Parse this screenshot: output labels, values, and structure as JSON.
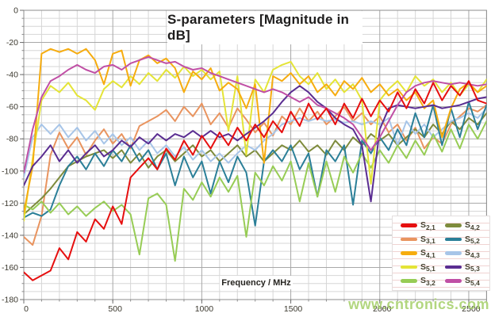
{
  "watermark": {
    "text": "www.cntronics.com",
    "color": "#a5cf69"
  },
  "chart_data": {
    "type": "line",
    "title": "S-parameters [Magnitude in dB]",
    "xlabel": "Frequency / MHz",
    "ylabel": "",
    "xlim": [
      0,
      2600
    ],
    "ylim": [
      -180,
      0
    ],
    "x_major_ticks": [
      0,
      500,
      1000,
      1500,
      2000,
      2500
    ],
    "y_major_ticks": [
      0,
      -20,
      -40,
      -60,
      -80,
      -100,
      -120,
      -140,
      -160,
      -180
    ],
    "x_minor_step": 100,
    "y_minor_step": 5,
    "grid": true,
    "legend_position": "bottom-right",
    "x_start": 0,
    "x_step": 50,
    "series": [
      {
        "name": "S2,1",
        "label_base": "S",
        "label_sub": "2,1",
        "color": "#e60f0f",
        "values": [
          -163,
          -168,
          -165,
          -162,
          -148,
          -155,
          -138,
          -144,
          -130,
          -136,
          -122,
          -133,
          -104,
          -98,
          -92,
          -99,
          -86,
          -93,
          -81,
          -90,
          -78,
          -86,
          -76,
          -84,
          -73,
          -81,
          -71,
          -79,
          -69,
          -76,
          -63,
          -72,
          -58,
          -68,
          -61,
          -71,
          -58,
          -67,
          -55,
          -66,
          -56,
          -63,
          -51,
          -61,
          -49,
          -58,
          -45,
          -56,
          -47,
          -53,
          -44,
          -56,
          -58
        ]
      },
      {
        "name": "S3,1",
        "label_base": "S",
        "label_sub": "3,1",
        "color": "#e9945f",
        "values": [
          -141,
          -146,
          -128,
          -90,
          -76,
          -86,
          -79,
          -90,
          -81,
          -74,
          -83,
          -77,
          -86,
          -72,
          -69,
          -66,
          -62,
          -69,
          -60,
          -66,
          -58,
          -71,
          -64,
          -73,
          -61,
          -68,
          -76,
          -70,
          -78,
          -66,
          -71,
          -61,
          -69,
          -63,
          -71,
          -66,
          -60,
          -69,
          -64,
          -71,
          -66,
          -76,
          -71,
          -81,
          -73,
          -86,
          -79,
          -83,
          -71,
          -66,
          -61,
          -63,
          -59
        ]
      },
      {
        "name": "S4,1",
        "label_base": "S",
        "label_sub": "4,1",
        "color": "#f6ac0f",
        "values": [
          -126,
          -97,
          -27,
          -24,
          -26,
          -24,
          -27,
          -24,
          -31,
          -46,
          -27,
          -25,
          -47,
          -31,
          -28,
          -33,
          -30,
          -36,
          -51,
          -38,
          -43,
          -36,
          -50,
          -45,
          -49,
          -61,
          -46,
          -95,
          -41,
          -44,
          -39,
          -46,
          -41,
          -51,
          -46,
          -53,
          -44,
          -49,
          -42,
          -51,
          -46,
          -53,
          -49,
          -56,
          -51,
          -61,
          -56,
          -79,
          -61,
          -49,
          -45,
          -51,
          -47
        ]
      },
      {
        "name": "S5,1",
        "label_base": "S",
        "label_sub": "5,1",
        "color": "#e4e437",
        "values": [
          -131,
          -92,
          -56,
          -47,
          -51,
          -45,
          -53,
          -56,
          -62,
          -49,
          -44,
          -48,
          -41,
          -46,
          -39,
          -44,
          -37,
          -42,
          -35,
          -41,
          -37,
          -43,
          -38,
          -75,
          -41,
          -90,
          -43,
          -51,
          -37,
          -34,
          -32,
          -41,
          -46,
          -39,
          -49,
          -43,
          -51,
          -46,
          -56,
          -108,
          -56,
          -49,
          -44,
          -51,
          -41,
          -47,
          -43,
          -51,
          -45,
          -53,
          -46,
          -51,
          -43
        ]
      },
      {
        "name": "S3,2",
        "label_base": "S",
        "label_sub": "3,2",
        "color": "#97cc55",
        "values": [
          -121,
          -124,
          -119,
          -126,
          -120,
          -127,
          -122,
          -128,
          -123,
          -119,
          -125,
          -121,
          -127,
          -152,
          -117,
          -114,
          -121,
          -156,
          -111,
          -118,
          -107,
          -116,
          -104,
          -113,
          -103,
          -141,
          -101,
          -109,
          -97,
          -106,
          -94,
          -119,
          -95,
          -116,
          -94,
          -113,
          -91,
          -101,
          -89,
          -98,
          -87,
          -95,
          -84,
          -92,
          -81,
          -90,
          -77,
          -88,
          -74,
          -86,
          -71,
          -80,
          -69
        ]
      },
      {
        "name": "S4,2",
        "label_base": "S",
        "label_sub": "4,2",
        "color": "#7e8b3c",
        "values": [
          -127,
          -122,
          -117,
          -111,
          -104,
          -97,
          -94,
          -91,
          -89,
          -87,
          -92,
          -87,
          -95,
          -89,
          -98,
          -91,
          -87,
          -94,
          -89,
          -84,
          -91,
          -87,
          -94,
          -89,
          -84,
          -91,
          -87,
          -94,
          -89,
          -84,
          -87,
          -81,
          -88,
          -84,
          -90,
          -81,
          -87,
          -79,
          -84,
          -77,
          -81,
          -77,
          -84,
          -79,
          -74,
          -79,
          -71,
          -77,
          -69,
          -74,
          -67,
          -71,
          -64
        ]
      },
      {
        "name": "S5,2",
        "label_base": "S",
        "label_sub": "5,2",
        "color": "#2b7f98",
        "values": [
          -129,
          -126,
          -128,
          -124,
          -109,
          -97,
          -91,
          -99,
          -89,
          -97,
          -87,
          -94,
          -84,
          -94,
          -87,
          -99,
          -89,
          -109,
          -91,
          -104,
          -94,
          -114,
          -94,
          -107,
          -91,
          -101,
          -134,
          -94,
          -87,
          -94,
          -84,
          -99,
          -89,
          -116,
          -87,
          -94,
          -84,
          -121,
          -81,
          -89,
          -79,
          -87,
          -74,
          -84,
          -64,
          -79,
          -59,
          -84,
          -61,
          -79,
          -57,
          -74,
          -59
        ]
      },
      {
        "name": "S4,3",
        "label_base": "S",
        "label_sub": "4,3",
        "color": "#a7c5e8",
        "values": [
          -104,
          -79,
          -71,
          -77,
          -71,
          -79,
          -73,
          -81,
          -75,
          -83,
          -77,
          -84,
          -79,
          -87,
          -81,
          -89,
          -84,
          -91,
          -85,
          -93,
          -87,
          -94,
          -89,
          -95,
          -89,
          -84,
          -87,
          -81,
          -77,
          -71,
          -69,
          -67,
          -69,
          -67,
          -69,
          -68,
          -70,
          -69,
          -71,
          -69,
          -71,
          -67,
          -84,
          -69,
          -77,
          -71,
          -79,
          -74,
          -69,
          -67,
          -64,
          -67,
          -61
        ]
      },
      {
        "name": "S5,3",
        "label_base": "S",
        "label_sub": "5,3",
        "color": "#5a2d91",
        "values": [
          -109,
          -97,
          -91,
          -84,
          -94,
          -87,
          -95,
          -89,
          -84,
          -91,
          -87,
          -81,
          -85,
          -79,
          -83,
          -77,
          -81,
          -77,
          -79,
          -75,
          -79,
          -75,
          -79,
          -77,
          -81,
          -77,
          -73,
          -69,
          -64,
          -57,
          -51,
          -47,
          -51,
          -57,
          -61,
          -67,
          -71,
          -74,
          -84,
          -119,
          -74,
          -61,
          -59,
          -60,
          -61,
          -60,
          -59,
          -61,
          -60,
          -59,
          -57,
          -55,
          -54
        ]
      },
      {
        "name": "S5,4",
        "label_base": "S",
        "label_sub": "5,4",
        "color": "#c04fa5",
        "values": [
          -101,
          -74,
          -54,
          -44,
          -41,
          -37,
          -34,
          -37,
          -39,
          -35,
          -34,
          -37,
          -33,
          -31,
          -29,
          -31,
          -33,
          -32,
          -35,
          -37,
          -36,
          -39,
          -41,
          -43,
          -45,
          -47,
          -49,
          -51,
          -49,
          -51,
          -54,
          -57,
          -54,
          -59,
          -61,
          -64,
          -67,
          -71,
          -79,
          -87,
          -79,
          -69,
          -59,
          -51,
          -47,
          -45,
          -44,
          -45,
          -46,
          -45,
          -46,
          -47,
          -46
        ]
      }
    ]
  }
}
